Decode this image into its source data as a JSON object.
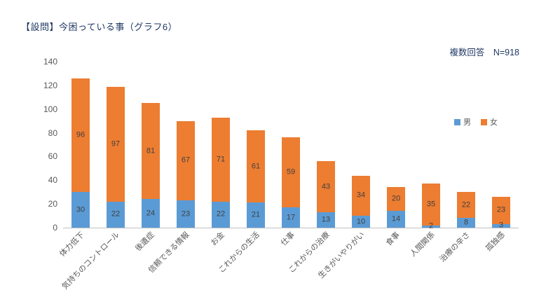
{
  "header": {
    "title": "【設問】今困っている事（グラフ6）",
    "note": "複数回答　N=918"
  },
  "chart_data": {
    "type": "bar",
    "stacked": true,
    "title": "【設問】今困っている事（グラフ6）",
    "annotation": "複数回答　N=918",
    "categories": [
      "体力低下",
      "気持ちのコントロール",
      "後遺症",
      "信頼できる情報",
      "お金",
      "これからの生活",
      "仕事",
      "これからの治療",
      "生きがいやりがい",
      "食事",
      "人間関係",
      "治療の辛さ",
      "孤独感"
    ],
    "series": [
      {
        "name": "男",
        "color": "#5B9BD5",
        "values": [
          30,
          22,
          24,
          23,
          22,
          21,
          17,
          13,
          10,
          14,
          2,
          8,
          3
        ]
      },
      {
        "name": "女",
        "color": "#ED7D31",
        "values": [
          96,
          97,
          81,
          67,
          71,
          61,
          59,
          43,
          34,
          20,
          35,
          22,
          23
        ]
      }
    ],
    "totals": [
      126,
      119,
      105,
      90,
      93,
      82,
      76,
      56,
      44,
      34,
      37,
      30,
      26
    ],
    "xlabel": "",
    "ylabel": "",
    "ylim": [
      0,
      140
    ],
    "ytick_step": 20,
    "grid": false,
    "legend_position": "right",
    "data_labels": true
  }
}
